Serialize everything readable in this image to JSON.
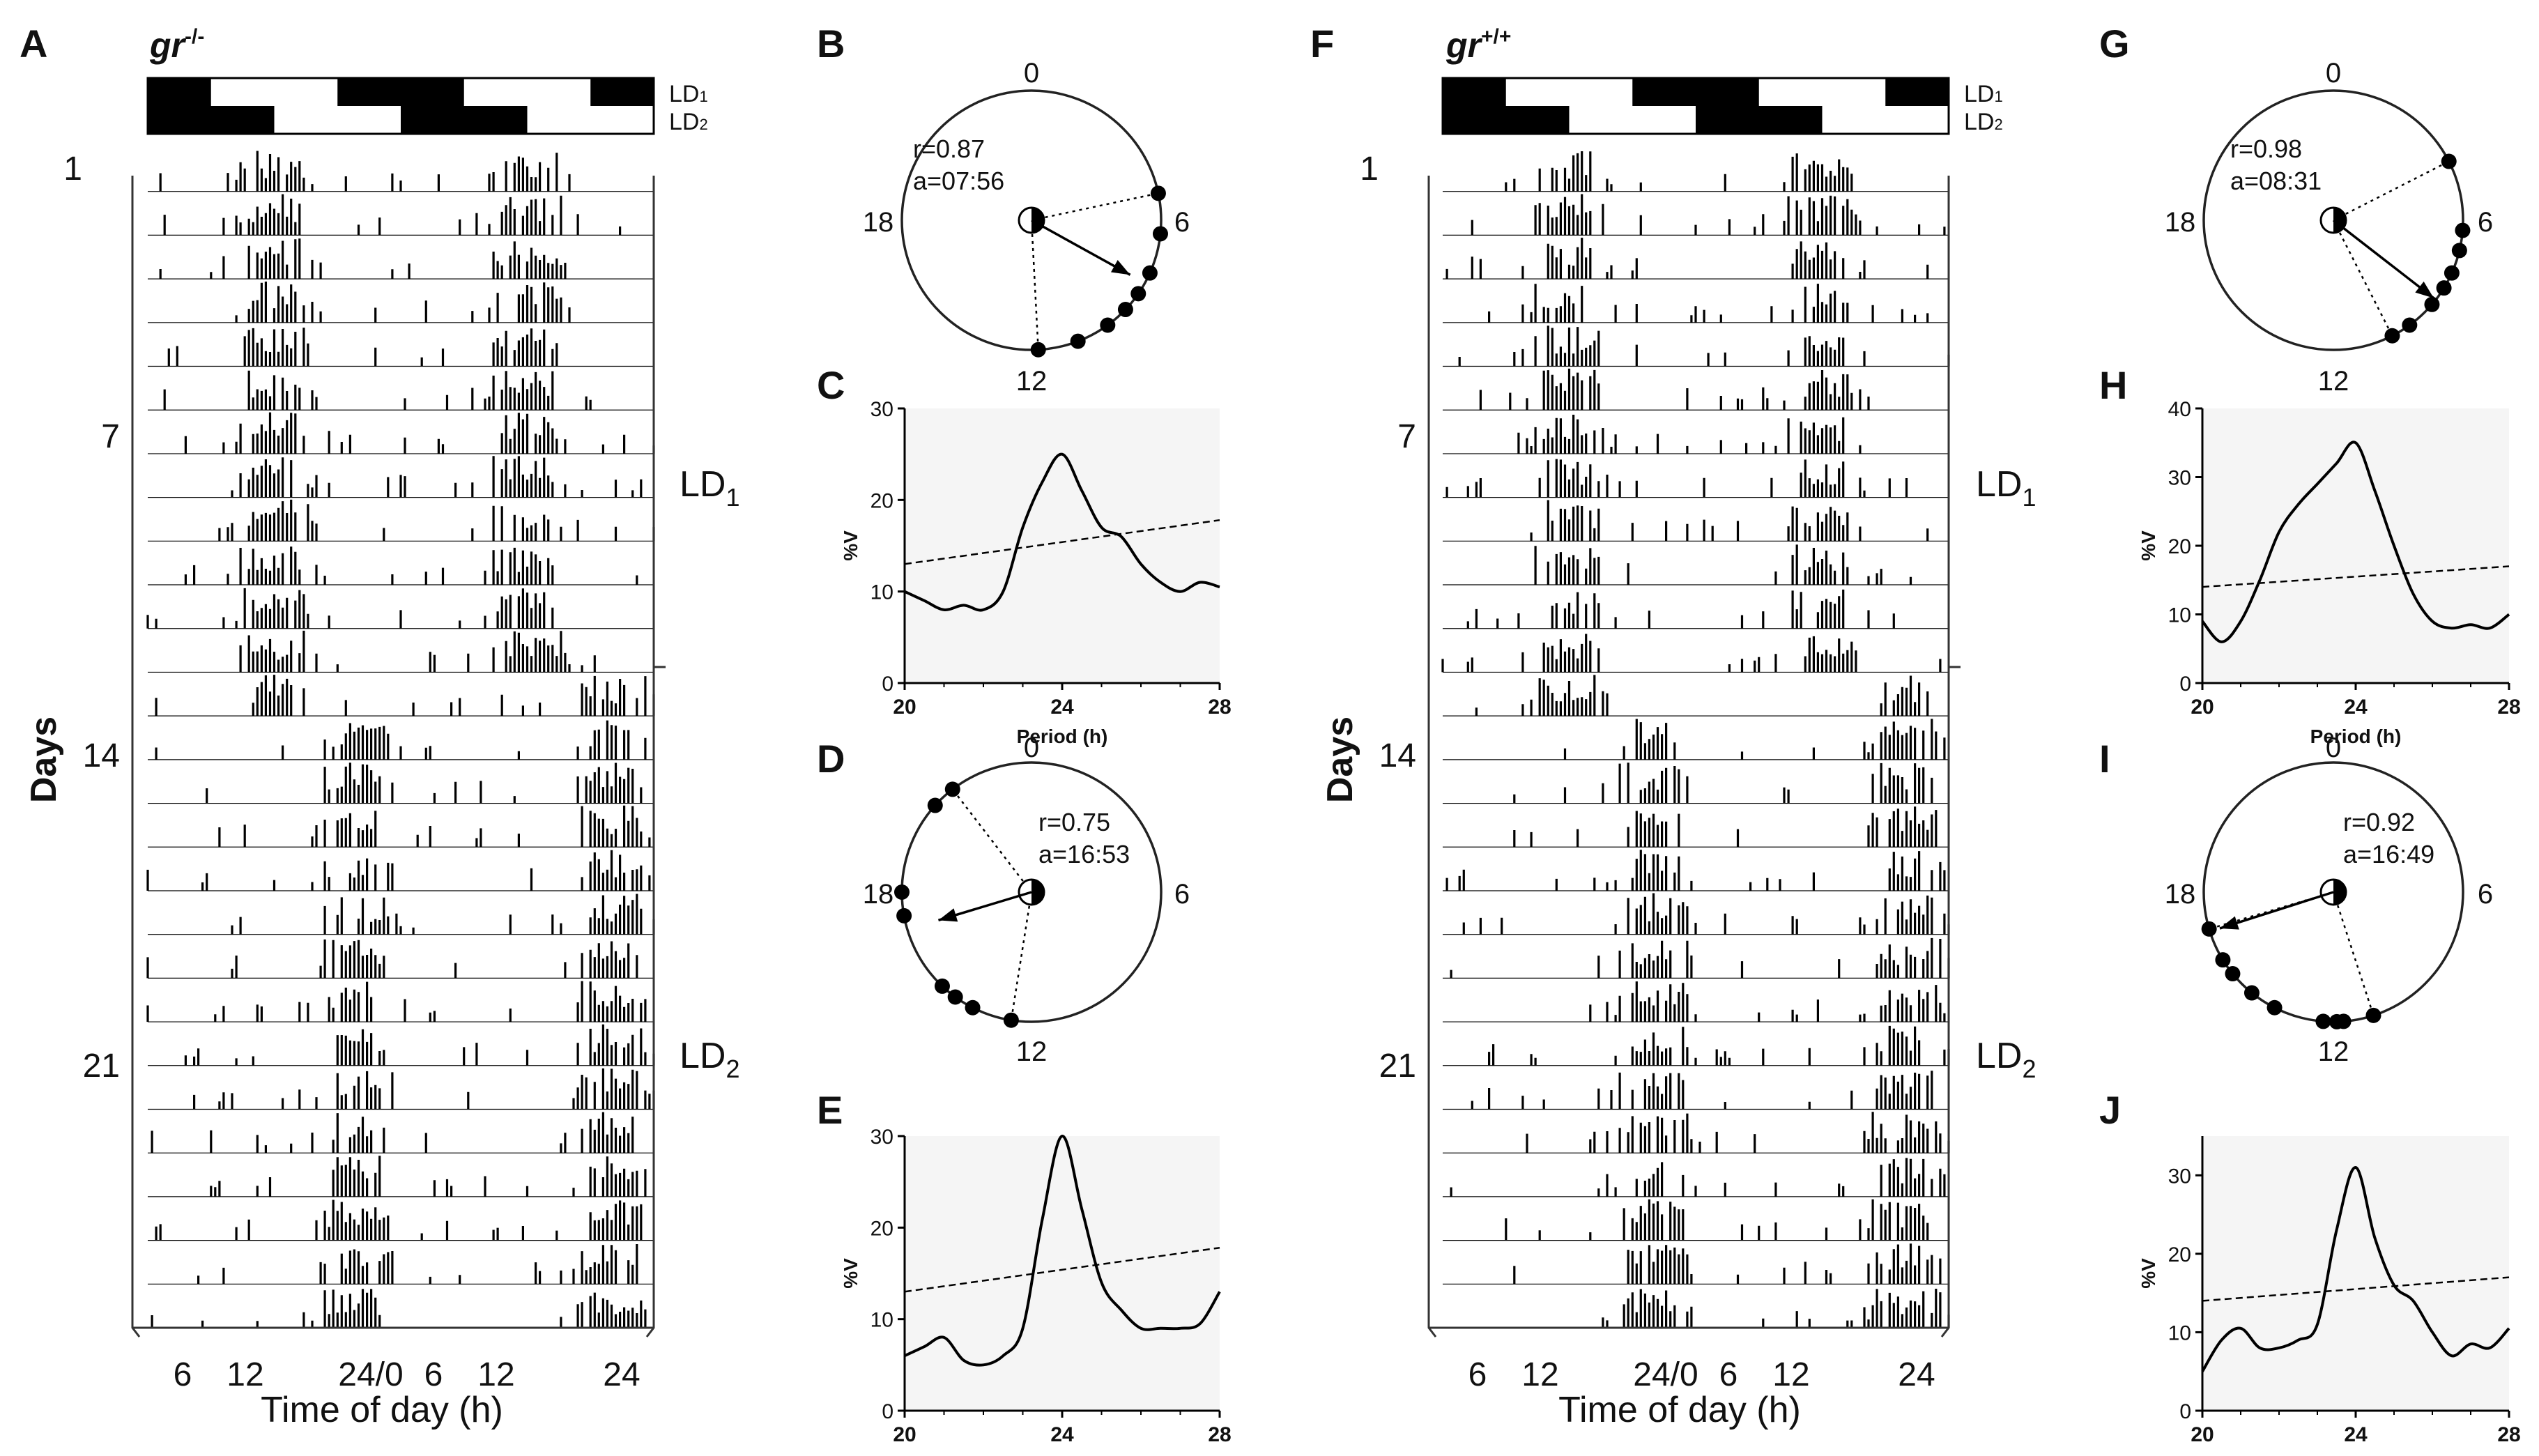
{
  "chart_data": [
    {
      "type": "actogram",
      "panel": "A",
      "genotype": "gr",
      "genotype_sup": "-/-",
      "ylabel": "Days",
      "xlabel": "Time of day (h)",
      "xticks": [
        "6",
        "12",
        "24/0",
        "6",
        "12",
        "24"
      ],
      "day_labels": [
        "1",
        "7",
        "14",
        "21"
      ],
      "regime_labels": [
        {
          "main": "LD",
          "sub": "1"
        },
        {
          "main": "LD",
          "sub": "2"
        }
      ],
      "bar_labels": [
        {
          "main": "LD",
          "sub": "1"
        },
        {
          "main": "LD",
          "sub": "2"
        }
      ],
      "days": 27,
      "ld1_days": 13,
      "active_center_ld1_h": 12,
      "active_center_ld2_h": 20
    },
    {
      "type": "polar",
      "panel": "B",
      "r_label": "r=0.87",
      "a_label": "a=07:56",
      "dial_labels": [
        "0",
        "6",
        "12",
        "18"
      ],
      "mean_phase_h": 7.93,
      "r": 0.87,
      "points_h": [
        5.2,
        6.4,
        7.6,
        8.3,
        8.9,
        9.6,
        10.6,
        11.8
      ]
    },
    {
      "type": "line",
      "panel": "C",
      "xlabel": "Period (h)",
      "ylabel": "%V",
      "xlim": [
        20,
        28
      ],
      "ylim": [
        0,
        30
      ],
      "xticks": [
        "20",
        "24",
        "28"
      ],
      "yticks": [
        "0",
        "10",
        "20",
        "30"
      ],
      "x": [
        20,
        20.5,
        21,
        21.5,
        22,
        22.5,
        23,
        23.5,
        24,
        24.5,
        25,
        25.5,
        26,
        26.5,
        27,
        27.5,
        28
      ],
      "y": [
        10,
        9,
        8,
        8.5,
        8,
        10,
        17,
        22,
        25,
        21,
        17,
        16,
        13,
        11,
        10,
        11,
        10.5
      ],
      "threshold": [
        13,
        17.8
      ]
    },
    {
      "type": "polar",
      "panel": "D",
      "r_label": "r=0.75",
      "a_label": "a=16:53",
      "dial_labels": [
        "0",
        "6",
        "12",
        "18"
      ],
      "mean_phase_h": 16.88,
      "r": 0.75,
      "points_h": [
        21.5,
        20.8,
        18.0,
        17.3,
        14.9,
        14.4,
        13.8,
        12.6
      ]
    },
    {
      "type": "line",
      "panel": "E",
      "xlabel": "Period (h)",
      "ylabel": "%V",
      "xlim": [
        20,
        28
      ],
      "ylim": [
        0,
        30
      ],
      "xticks": [
        "20",
        "24",
        "28"
      ],
      "yticks": [
        "0",
        "10",
        "20",
        "30"
      ],
      "x": [
        20,
        20.5,
        21,
        21.5,
        22,
        22.5,
        23,
        23.5,
        24,
        24.5,
        25,
        25.5,
        26,
        26.5,
        27,
        27.5,
        28
      ],
      "y": [
        6,
        7,
        8,
        5.5,
        5,
        6,
        9,
        21,
        30,
        22,
        14,
        11,
        9,
        9,
        9,
        9.5,
        13
      ],
      "threshold": [
        13,
        17.8
      ]
    },
    {
      "type": "actogram",
      "panel": "F",
      "genotype": "gr",
      "genotype_sup": "+/+",
      "ylabel": "Days",
      "xlabel": "Time of day (h)",
      "xticks": [
        "6",
        "12",
        "24/0",
        "6",
        "12",
        "24"
      ],
      "day_labels": [
        "1",
        "7",
        "14",
        "21"
      ],
      "regime_labels": [
        {
          "main": "LD",
          "sub": "1"
        },
        {
          "main": "LD",
          "sub": "2"
        }
      ],
      "bar_labels": [
        {
          "main": "LD",
          "sub": "1"
        },
        {
          "main": "LD",
          "sub": "2"
        }
      ],
      "days": 27,
      "ld1_days": 13,
      "active_center_ld1_h": 12,
      "active_center_ld2_h": 20
    },
    {
      "type": "polar",
      "panel": "G",
      "r_label": "r=0.98",
      "a_label": "a=08:31",
      "dial_labels": [
        "0",
        "6",
        "12",
        "18"
      ],
      "mean_phase_h": 8.52,
      "r": 0.98,
      "points_h": [
        4.2,
        6.3,
        6.9,
        7.6,
        8.1,
        8.7,
        9.6,
        10.2
      ]
    },
    {
      "type": "line",
      "panel": "H",
      "xlabel": "Period (h)",
      "ylabel": "%V",
      "xlim": [
        20,
        28
      ],
      "ylim": [
        0,
        40
      ],
      "xticks": [
        "20",
        "24",
        "28"
      ],
      "yticks": [
        "0",
        "10",
        "20",
        "30",
        "40"
      ],
      "x": [
        20,
        20.5,
        21,
        21.5,
        22,
        22.5,
        23,
        23.5,
        24,
        24.5,
        25,
        25.5,
        26,
        26.5,
        27,
        27.5,
        28
      ],
      "y": [
        9,
        6,
        9,
        15,
        22,
        26,
        29,
        32,
        35,
        28,
        20,
        13,
        9,
        8,
        8.5,
        8,
        10
      ],
      "threshold": [
        14,
        17
      ]
    },
    {
      "type": "polar",
      "panel": "I",
      "r_label": "r=0.92",
      "a_label": "a=16:49",
      "dial_labels": [
        "0",
        "6",
        "12",
        "18"
      ],
      "mean_phase_h": 16.82,
      "r": 0.92,
      "points_h": [
        16.9,
        15.9,
        15.4,
        14.6,
        13.8,
        12.3,
        11.9,
        11.7,
        10.8
      ]
    },
    {
      "type": "line",
      "panel": "J",
      "xlabel": "Period (h)",
      "ylabel": "%V",
      "xlim": [
        20,
        28
      ],
      "ylim": [
        0,
        35
      ],
      "xticks": [
        "20",
        "24",
        "28"
      ],
      "yticks": [
        "0",
        "10",
        "20",
        "30"
      ],
      "x": [
        20,
        20.5,
        21,
        21.5,
        22,
        22.5,
        23,
        23.5,
        24,
        24.5,
        25,
        25.5,
        26,
        26.5,
        27,
        27.5,
        28
      ],
      "y": [
        5,
        9,
        10.5,
        8,
        8,
        9,
        11,
        23,
        31,
        22,
        16,
        14,
        10,
        7,
        8.5,
        8,
        10.5
      ],
      "threshold": [
        14,
        17
      ]
    }
  ]
}
